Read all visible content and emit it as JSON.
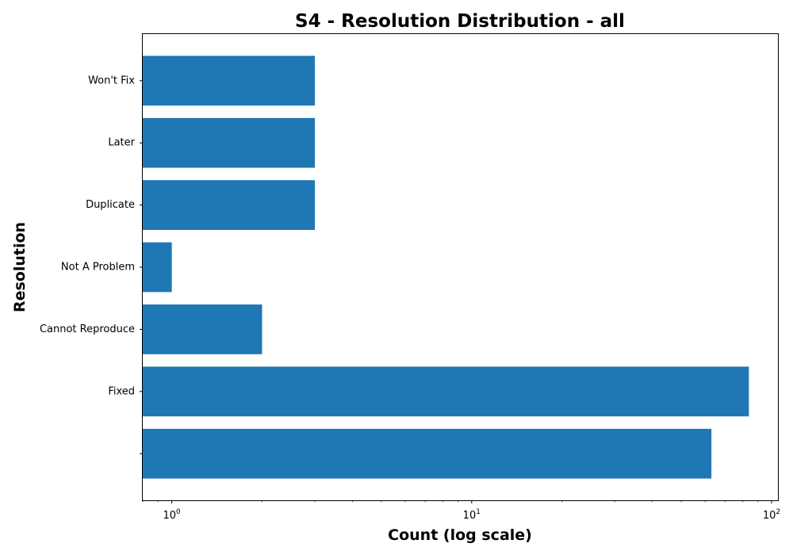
{
  "chart_data": {
    "type": "bar",
    "orientation": "horizontal",
    "title": "S4 - Resolution Distribution - all",
    "xlabel": "Count (log scale)",
    "ylabel": "Resolution",
    "xscale": "log",
    "xlim": [
      0.8,
      105
    ],
    "xticks": [
      {
        "value": 1,
        "base": "10",
        "exp": "0"
      },
      {
        "value": 10,
        "base": "10",
        "exp": "1"
      },
      {
        "value": 100,
        "base": "10",
        "exp": "2"
      }
    ],
    "categories": [
      "",
      "Fixed",
      "Cannot Reproduce",
      "Not A Problem",
      "Duplicate",
      "Later",
      "Won't Fix"
    ],
    "values": [
      63,
      84,
      2,
      1,
      3,
      3,
      3
    ],
    "bar_color": "#1f77b4",
    "grid": false,
    "legend": "none"
  }
}
